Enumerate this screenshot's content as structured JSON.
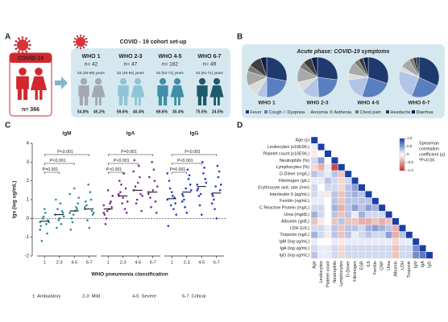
{
  "panel_labels": [
    "A",
    "B",
    "C",
    "D"
  ],
  "cohort": {
    "title": "COVID - 19 cohort set-up",
    "source_label": "COVID-19",
    "source_n": "n= 366",
    "groups": [
      {
        "name": "WHO 1",
        "n": "n= 42",
        "age": "53 (45-69) years",
        "male": "54.8%",
        "female": "45.2%",
        "color": "#a3a9b0"
      },
      {
        "name": "WHO 2-3",
        "n": "n= 47",
        "age": "52 (48-64) years",
        "male": "59.6%",
        "female": "40.4%",
        "color": "#8fc3d8"
      },
      {
        "name": "WHO 4-5",
        "n": "n= 182",
        "age": "62 (52-71) years",
        "male": "69.6%",
        "female": "30.4%",
        "color": "#3f8fa8"
      },
      {
        "name": "WHO 6-7",
        "n": "n= 49",
        "age": "62 (61-71) years",
        "male": "75.5%",
        "female": "24.5%",
        "color": "#1d5a6e"
      }
    ]
  },
  "chart_data": [
    {
      "type": "pie",
      "title": "Acute phase: COVID-19 symptoms",
      "categories": [
        "Fever",
        "Cough",
        "Dyspnea",
        "Anosmia",
        "Asthenia",
        "Chest pain",
        "Headache",
        "Diarrhea"
      ],
      "colors": [
        "#1f3a6e",
        "#5a7fc0",
        "#b3c5e6",
        "#dcdcdc",
        "#a8a8a8",
        "#7a7a7a",
        "#3f3f3f",
        "#0d1f4d"
      ],
      "series": [
        {
          "name": "WHO 1",
          "values": [
            28,
            22,
            8,
            10,
            12,
            5,
            10,
            5
          ]
        },
        {
          "name": "WHO 2-3",
          "values": [
            27,
            22,
            14,
            8,
            12,
            5,
            7,
            5
          ]
        },
        {
          "name": "WHO 4-5",
          "values": [
            30,
            25,
            18,
            5,
            10,
            4,
            4,
            4
          ]
        },
        {
          "name": "WHO 6-7",
          "values": [
            32,
            24,
            24,
            4,
            8,
            3,
            3,
            2
          ]
        }
      ]
    },
    {
      "type": "strip",
      "ylabel": "Igs (log ug/mL)",
      "xlabel": "WHO pneumonia classification",
      "notes": [
        "1: Ambulatory",
        "2-3: Mild",
        "4-5: Severe",
        "6-7: Critical"
      ],
      "categories": [
        "1",
        "2-3",
        "4-5",
        "6-7"
      ],
      "ylim": [
        -2,
        4
      ],
      "yticks": [
        -2,
        -1,
        0,
        1,
        2,
        3,
        4
      ],
      "reference_line": 0,
      "panels": [
        {
          "name": "IgM",
          "color": "#2b8a9c",
          "groups": [
            [
              -0.6,
              -0.3,
              0,
              -0.2,
              0.3,
              -1.2,
              -0.1,
              0.5,
              -0.4,
              -0.8,
              0.1,
              -0.2
            ],
            [
              0.2,
              -0.3,
              0.5,
              0.1,
              0.8,
              -0.5,
              0.3,
              0,
              1,
              0.4,
              -0.1,
              0.2
            ],
            [
              0.3,
              0.6,
              -0.2,
              1.1,
              0.4,
              0,
              0.8,
              1.6,
              -0.6,
              0.5,
              0.2,
              1.3
            ],
            [
              0.5,
              1,
              -0.1,
              0.3,
              1.4,
              0.7,
              0.2,
              -0.5,
              0.9,
              0.4,
              1.8,
              0.6
            ]
          ],
          "medians": [
            -0.15,
            0.2,
            0.4,
            0.5
          ],
          "brackets": [
            {
              "from": "1",
              "to": "2-3",
              "label": "P=0.001"
            },
            {
              "from": "1",
              "to": "4-5",
              "label": "P<0.001"
            },
            {
              "from": "1",
              "to": "6-7",
              "label": "P<0.001"
            }
          ]
        },
        {
          "name": "IgA",
          "color": "#7a2c8c",
          "groups": [
            [
              0.3,
              0.8,
              0,
              1.2,
              0.5,
              -0.3,
              0.6,
              1.5,
              0.2,
              0.9,
              0.4,
              0.7
            ],
            [
              1.2,
              0.5,
              1.8,
              0.9,
              2.4,
              1.4,
              0.3,
              1.1,
              2,
              1.6,
              0.8,
              1.3
            ],
            [
              1.5,
              2.2,
              0.8,
              1.2,
              2.8,
              1.7,
              0.4,
              1.9,
              3.1,
              1.3,
              1,
              2.5
            ],
            [
              1.3,
              2,
              0.6,
              1.7,
              2.6,
              1.1,
              0.3,
              1.5,
              2.2,
              0.9,
              3,
              1.4
            ]
          ],
          "medians": [
            0.5,
            1.2,
            1.5,
            1.4
          ],
          "brackets": [
            {
              "from": "1",
              "to": "2-3",
              "label": "P<0.001"
            },
            {
              "from": "1",
              "to": "4-5",
              "label": "P<0.001"
            },
            {
              "from": "1",
              "to": "6-7",
              "label": "P=0.001"
            }
          ]
        },
        {
          "name": "IgG",
          "color": "#2c35c8",
          "groups": [
            [
              1,
              0.5,
              1.6,
              0.2,
              1.2,
              2,
              0.8,
              1.4,
              -0.4,
              1.1,
              0.7,
              2.4
            ],
            [
              1.3,
              2.1,
              0.6,
              1.5,
              2.6,
              1,
              1.8,
              0.3,
              1.2,
              2.3,
              1.6,
              0.9
            ],
            [
              1.5,
              2.4,
              0.7,
              1.9,
              3,
              1.2,
              2.1,
              0.2,
              1.6,
              2.7,
              1.3,
              1.8
            ],
            [
              1.3,
              2.2,
              0.5,
              1.8,
              2.8,
              1,
              1.5,
              0,
              1.2,
              2.5,
              1.7,
              0.8
            ]
          ],
          "medians": [
            1.05,
            1.4,
            1.7,
            1.35
          ],
          "brackets": [
            {
              "from": "1",
              "to": "2-3",
              "label": "P=0.001"
            },
            {
              "from": "1",
              "to": "4-5",
              "label": "P<0.001"
            },
            {
              "from": "1",
              "to": "6-7",
              "label": "P<0.001"
            }
          ]
        }
      ]
    },
    {
      "type": "heatmap",
      "row_labels": [
        "Age (y)",
        "Leukocytes (x10E9/L)",
        "Platelet count (x10E9/L)",
        "Neutrophils (%)",
        "Lymphocytes (%)",
        "D-Dimer (mg/L)",
        "Fibrinogen (g/L)",
        "Erythrocyte sed. rate (mm)",
        "Interleukin 6 (pg/mL)",
        "Ferritin (ng/mL)",
        "C Reactive Protein (mg/L)",
        "Urea (mg/dL)",
        "Albumin (g/dL)",
        "LDH (U/L)",
        "Troponin (ng/L)",
        "IgM (log ug/mL)",
        "IgA (log ug/mL)",
        "IgG (log ug/mL)"
      ],
      "col_labels": [
        "Age",
        "Leukocytes",
        "Platelet count",
        "Neutrophils",
        "Lymphocytes",
        "D-Dimer",
        "Fibrinogen",
        "ESR",
        "IL6",
        "Ferritin",
        "CRP",
        "Urea",
        "Albumin",
        "LDH",
        "Troponin",
        "IgM",
        "IgA",
        "IgG"
      ],
      "matrix": [
        [
          1
        ],
        [
          0.1,
          1
        ],
        [
          -0.1,
          0,
          1
        ],
        [
          0.2,
          0.5,
          0,
          1
        ],
        [
          -0.2,
          -0.4,
          0.1,
          -0.9,
          1
        ],
        [
          0.3,
          0.2,
          0.1,
          0.3,
          -0.3,
          1
        ],
        [
          0.1,
          0.1,
          0.3,
          0.2,
          -0.2,
          0.2,
          1
        ],
        [
          0.2,
          0,
          0.2,
          0.2,
          -0.2,
          0.3,
          0.5,
          1
        ],
        [
          0.2,
          0.1,
          -0.1,
          0.3,
          -0.3,
          0.3,
          0.4,
          0.3,
          1
        ],
        [
          0.1,
          0.1,
          0,
          0.3,
          -0.3,
          0.3,
          0.3,
          0.3,
          0.3,
          1
        ],
        [
          0.2,
          0.2,
          0,
          0.4,
          -0.4,
          0.3,
          0.5,
          0.3,
          0.5,
          0.4,
          1
        ],
        [
          0.4,
          0.2,
          0,
          0.3,
          -0.3,
          0.3,
          0.1,
          0.4,
          0.2,
          0.2,
          0.2,
          1
        ],
        [
          -0.3,
          -0.1,
          0,
          -0.3,
          0.3,
          -0.3,
          -0.3,
          -0.4,
          -0.4,
          -0.3,
          -0.4,
          -0.3,
          1
        ],
        [
          0.2,
          0.2,
          0.1,
          0.3,
          -0.3,
          0.3,
          0.3,
          0.2,
          0.4,
          0.5,
          0.4,
          0.3,
          -0.4,
          1
        ],
        [
          0.4,
          0.2,
          -0.1,
          0.3,
          -0.3,
          0.3,
          0.1,
          0.2,
          0.3,
          0.2,
          0.2,
          0.5,
          -0.4,
          0.3,
          1
        ],
        [
          0.1,
          0,
          0,
          0.1,
          -0.1,
          0.1,
          0.1,
          0.1,
          0.1,
          0.1,
          0.1,
          0.1,
          -0.2,
          0.1,
          0.1,
          1
        ],
        [
          0.2,
          0.1,
          0.1,
          0.2,
          -0.2,
          0.2,
          0.2,
          0.2,
          0.2,
          0.2,
          0.2,
          0.2,
          -0.3,
          0.2,
          0.2,
          0.6,
          1
        ],
        [
          0.3,
          0.1,
          0.1,
          0.2,
          -0.2,
          0.2,
          0.2,
          0.2,
          0.2,
          0.2,
          0.2,
          0.2,
          -0.3,
          0.2,
          0.2,
          0.6,
          0.7,
          1
        ]
      ],
      "positive_color": "#1a3fa8",
      "negative_color": "#c0392b",
      "colorbar": {
        "title": [
          "Spearman",
          "correlation",
          "coefficient (ρ)"
        ],
        "note": "*P<0.05",
        "lim": [
          -1,
          1
        ],
        "ticks": [
          {
            "value": 1,
            "label": "1.0"
          },
          {
            "value": 0.5,
            "label": "0.5"
          },
          0,
          {
            "value": -0.5,
            "label": "-0.5"
          },
          {
            "value": -1,
            "label": "-1.0"
          }
        ]
      }
    }
  ]
}
